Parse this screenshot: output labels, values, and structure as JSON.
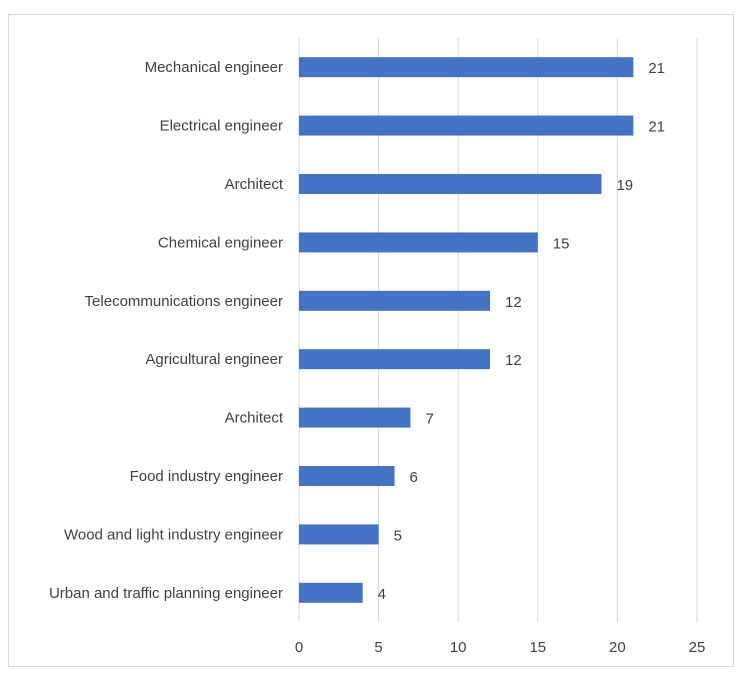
{
  "chart_data": {
    "type": "bar",
    "orientation": "horizontal",
    "categories": [
      "Mechanical engineer",
      "Electrical engineer",
      "Architect",
      "Chemical engineer",
      "Telecommunications engineer",
      "Agricultural engineer",
      "Architect",
      "Food industry engineer",
      "Wood and light industry engineer",
      "Urban and traffic planning engineer"
    ],
    "values": [
      21,
      21,
      19,
      15,
      12,
      12,
      7,
      6,
      5,
      4
    ],
    "xlim": [
      0,
      25
    ],
    "xticks": [
      0,
      5,
      10,
      15,
      20,
      25
    ],
    "grid": true,
    "data_labels": true,
    "title": "",
    "xlabel": "",
    "ylabel": "",
    "colors": {
      "bar": "#4472c4",
      "grid": "#d9d9d9",
      "text": "#404040"
    }
  }
}
